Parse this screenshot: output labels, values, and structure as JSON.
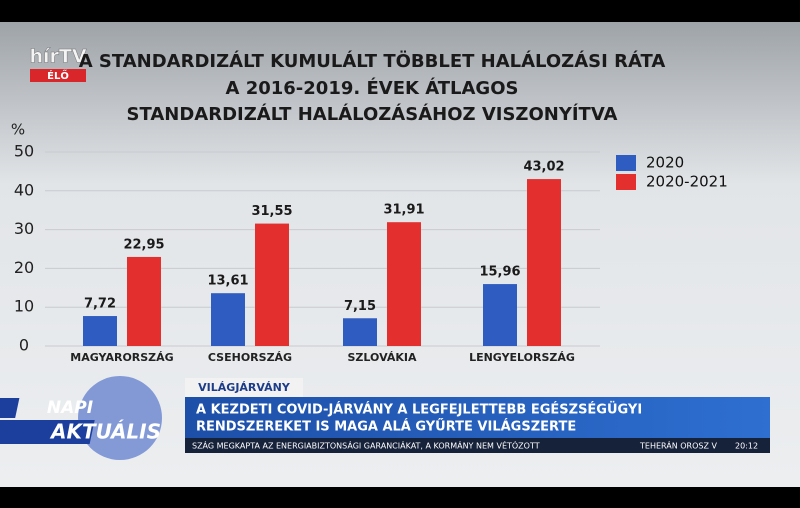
{
  "chart_data": {
    "type": "bar",
    "title": [
      "A STANDARDIZÁLT KUMULÁLT TÖBBLET HALÁLOZÁSI RÁTA",
      "A 2016-2019. ÉVEK ÁTLAGOS",
      "STANDARDIZÁLT HALÁLOZÁSÁHOZ VISZONYÍTVA"
    ],
    "y_label": "%",
    "categories": [
      "MAGYARORSZÁG",
      "CSEHORSZÁG",
      "SZLOVÁKIA",
      "LENGYELORSZÁG"
    ],
    "series": [
      {
        "name": "2020",
        "color": "#2f5cc0",
        "values": [
          7.72,
          13.61,
          7.15,
          15.96
        ],
        "value_labels": [
          "7,72",
          "13,61",
          "7,15",
          "15,96"
        ]
      },
      {
        "name": "2020-2021",
        "color": "#e3302f",
        "values": [
          22.95,
          31.55,
          31.91,
          43.02
        ],
        "value_labels": [
          "22,95",
          "31,55",
          "31,91",
          "43,02"
        ]
      }
    ],
    "ylim": [
      0,
      50
    ],
    "yticks": [
      0,
      10,
      20,
      30,
      40,
      50
    ],
    "grid": true
  },
  "overlay": {
    "channel": "hírTV",
    "live": "ÉLŐ",
    "show": [
      "NAPI",
      "AKTUÁLIS"
    ],
    "tag": "VILÁGJÁRVÁNY",
    "headline": [
      "A KEZDETI COVID-JÁRVÁNY A LEGFEJLETTEBB EGÉSZSÉGÜGYI",
      "RENDSZEREKET IS MAGA ALÁ GYŰRTE VILÁGSZERTE"
    ],
    "ticker": "SZÁG MEGKAPTA AZ ENERGIABIZTONSÁGI GARANCIÁKAT, A KORMÁNY NEM VÉTÓZOTT",
    "ticker_next": "TEHERÁN OROSZ V",
    "clock": "20:12"
  }
}
